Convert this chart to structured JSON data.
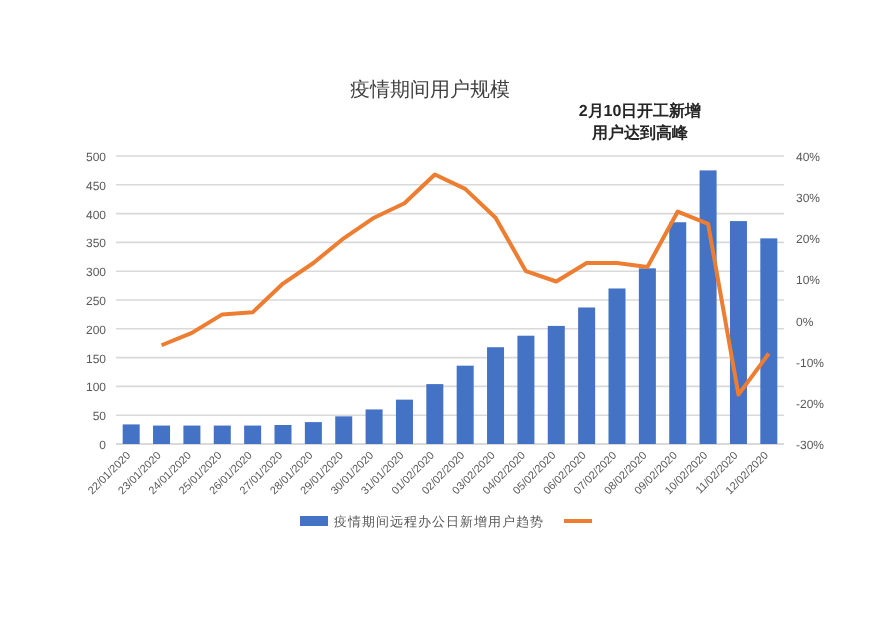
{
  "chart_data": {
    "type": "bar",
    "title": "疫情期间用户规模",
    "annotations": [
      "2月10日开工新增用户达到高峰"
    ],
    "categories": [
      "22/01/2020",
      "23/01/2020",
      "24/01/2020",
      "25/01/2020",
      "26/01/2020",
      "27/01/2020",
      "28/01/2020",
      "29/01/2020",
      "30/01/2020",
      "31/01/2020",
      "01/02/2020",
      "02/02/2020",
      "03/02/2020",
      "04/02/2020",
      "05/02/2020",
      "06/02/2020",
      "07/02/2020",
      "08/02/2020",
      "09/02/2020",
      "10/02/2020",
      "11/02/2020",
      "12/02/2020"
    ],
    "series": [
      {
        "name": "疫情期间远程办公日新增用户趋势",
        "color": "#4472c4",
        "values": [
          34,
          32,
          32,
          32,
          32,
          33,
          38,
          48,
          60,
          77,
          104,
          136,
          168,
          188,
          205,
          237,
          270,
          305,
          385,
          475,
          387,
          357
        ]
      },
      {
        "type": "line",
        "axis": "y2",
        "color": "#ed7d31",
        "values": [
          null,
          -6,
          -3,
          1.5,
          2,
          9,
          14,
          20,
          25,
          28.5,
          35.5,
          32,
          25,
          12,
          9.5,
          14,
          14,
          13,
          26.5,
          23.5,
          -18,
          -8
        ]
      }
    ],
    "ylim": [
      0,
      500
    ],
    "yticks": [
      0,
      50,
      100,
      150,
      200,
      250,
      300,
      350,
      400,
      450,
      500
    ],
    "y2lim": [
      -30,
      40
    ],
    "y2ticks": [
      {
        "value": -30,
        "label": "-30%"
      },
      {
        "value": -20,
        "label": "-20%"
      },
      {
        "value": -10,
        "label": "-10%"
      },
      {
        "value": 0,
        "label": "0%"
      },
      {
        "value": 10,
        "label": "10%"
      },
      {
        "value": 20,
        "label": "20%"
      },
      {
        "value": 30,
        "label": "30%"
      },
      {
        "value": 40,
        "label": "40%"
      }
    ],
    "grid": "y",
    "legend": "bottom",
    "line_style": "solid",
    "marker": "none"
  }
}
